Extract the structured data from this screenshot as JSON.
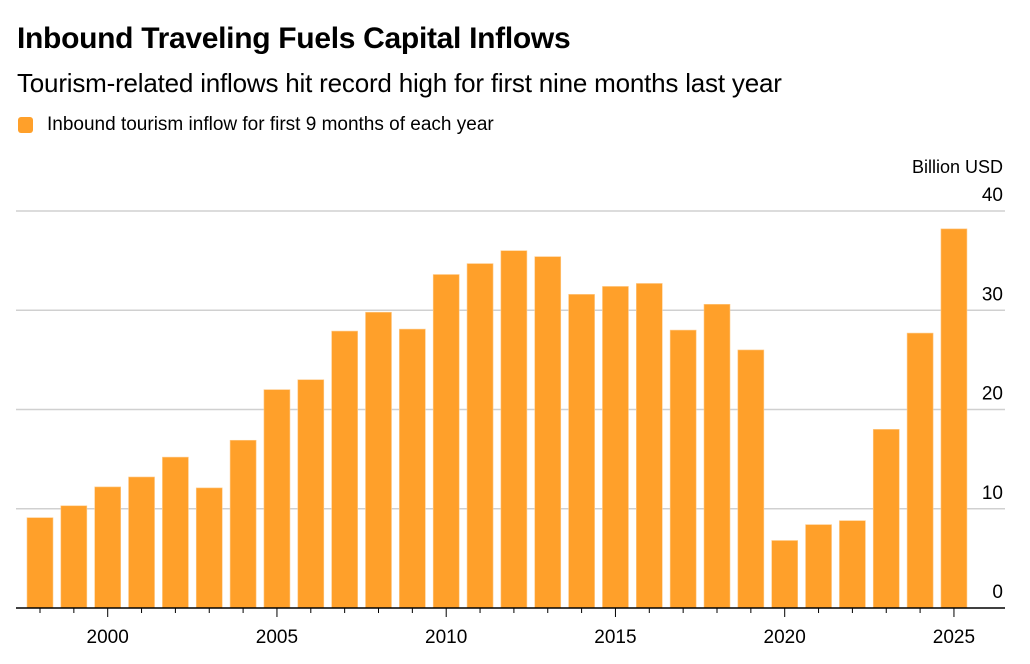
{
  "header": {
    "title": "Inbound Traveling Fuels Capital Inflows",
    "subtitle": "Tourism-related inflows hit record high for first nine months last year"
  },
  "legend": [
    {
      "label": "Inbound tourism inflow for first 9 months of each year",
      "color": "#FFA02A"
    }
  ],
  "colors": {
    "bar": "#FFA02A",
    "bar_outline": "#FFCB8A",
    "grid": "#D0D0D0",
    "axis": "#000000"
  },
  "chart_data": {
    "type": "bar",
    "title": "Inbound Traveling Fuels Capital Inflows",
    "subtitle": "Tourism-related inflows hit record high for first nine months last year",
    "xlabel": "",
    "ylabel": "Billion USD",
    "ylim": [
      0,
      40
    ],
    "y_ticks": [
      0,
      10,
      20,
      30,
      40
    ],
    "y_axis_side": "right",
    "grid": true,
    "legend_position": "top-left",
    "x_range": [
      1998,
      2025
    ],
    "x_tick_labels": [
      2000,
      2005,
      2010,
      2015,
      2020,
      2025
    ],
    "categories": [
      1998,
      1999,
      2000,
      2001,
      2002,
      2003,
      2004,
      2005,
      2006,
      2007,
      2008,
      2009,
      2010,
      2011,
      2012,
      2013,
      2014,
      2015,
      2016,
      2017,
      2018,
      2019,
      2020,
      2021,
      2022,
      2023,
      2024,
      2025
    ],
    "series": [
      {
        "name": "Inbound tourism inflow for first 9 months of each year",
        "values": [
          9.1,
          10.3,
          12.2,
          13.2,
          15.2,
          12.1,
          16.9,
          22.0,
          23.0,
          27.9,
          29.8,
          28.1,
          33.6,
          34.7,
          36.0,
          35.4,
          31.6,
          32.4,
          32.7,
          28.0,
          30.6,
          26.0,
          6.8,
          8.4,
          8.8,
          18.0,
          27.7,
          38.2
        ]
      }
    ]
  }
}
